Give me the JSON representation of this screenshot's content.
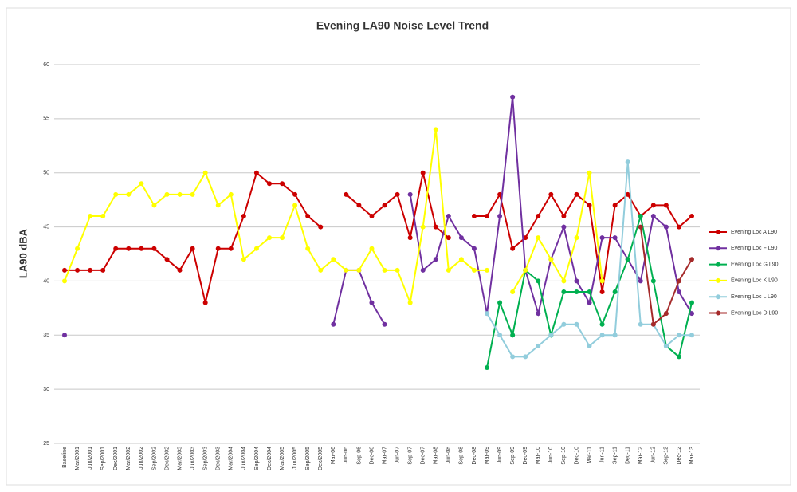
{
  "chart_data": {
    "type": "line",
    "title": "Evening LA90 Noise Level Trend",
    "y_label": "LA90 dBA",
    "categories": [
      "Baseline",
      "Mar/2001",
      "Jun/2001",
      "Sep/2001",
      "Dec/2001",
      "Mar/2002",
      "Jun/2002",
      "Sep/2002",
      "Dec/2002",
      "Mar/2003",
      "Jun/2003",
      "Sep/2003",
      "Dec/2003",
      "Mar/2004",
      "Jun/2004",
      "Sep/2004",
      "Dec/2004",
      "Mar/2005",
      "Jun/2005",
      "Sep/2005",
      "Dec/2005",
      "Mar-06",
      "Jun-06",
      "Sep-06",
      "Dec-06",
      "Mar-07",
      "Jun-07",
      "Sep-07",
      "Dec-07",
      "Mar-08",
      "Jun-08",
      "Sep-08",
      "Dec-08",
      "Mar-09",
      "Jun-09",
      "Sep-09",
      "Dec-09",
      "Mar-10",
      "Jun-10",
      "Sep-10",
      "Dec-10",
      "Mar-11",
      "Jun-11",
      "Sep-11",
      "Dec-11",
      "Mar-12",
      "Jun-12",
      "Sep-12",
      "Dec-12",
      "Mar-13"
    ],
    "series": [
      {
        "name": "Evening Loc A L90",
        "color": "#cc0000",
        "values": [
          41,
          41,
          41,
          41,
          43,
          43,
          43,
          43,
          42,
          41,
          43,
          38,
          43,
          43,
          46,
          50,
          49,
          49,
          48,
          46,
          45,
          null,
          48,
          47,
          46,
          47,
          48,
          44,
          50,
          45,
          44,
          null,
          46,
          46,
          48,
          43,
          44,
          46,
          48,
          46,
          48,
          47,
          39,
          47,
          48,
          46,
          47,
          47,
          45,
          46
        ]
      },
      {
        "name": "Evening Loc F L90",
        "color": "#7030a0",
        "values": [
          35,
          null,
          null,
          null,
          null,
          null,
          null,
          null,
          null,
          null,
          null,
          null,
          null,
          null,
          null,
          null,
          null,
          null,
          null,
          null,
          null,
          36,
          41,
          41,
          38,
          36,
          null,
          48,
          41,
          42,
          46,
          44,
          43,
          37,
          46,
          57,
          41,
          37,
          42,
          45,
          40,
          38,
          44,
          44,
          42,
          40,
          46,
          45,
          39,
          37
        ]
      },
      {
        "name": "Evening Loc G L90",
        "color": "#00b050",
        "values": [
          null,
          null,
          null,
          null,
          null,
          null,
          null,
          null,
          null,
          null,
          null,
          null,
          null,
          null,
          null,
          null,
          null,
          null,
          null,
          null,
          null,
          null,
          null,
          null,
          null,
          null,
          null,
          null,
          null,
          null,
          null,
          null,
          null,
          32,
          38,
          35,
          41,
          40,
          35,
          39,
          39,
          39,
          36,
          39,
          42,
          46,
          40,
          34,
          33,
          38
        ]
      },
      {
        "name": "Evening Loc K L90",
        "color": "#ffff00",
        "values": [
          40,
          43,
          46,
          46,
          48,
          48,
          49,
          47,
          48,
          48,
          48,
          50,
          47,
          48,
          42,
          43,
          44,
          44,
          47,
          43,
          41,
          42,
          41,
          41,
          43,
          41,
          41,
          38,
          45,
          54,
          41,
          42,
          41,
          41,
          null,
          39,
          41,
          44,
          42,
          40,
          44,
          50,
          40,
          null,
          null,
          null,
          null,
          null,
          null,
          null
        ]
      },
      {
        "name": "Evening Loc L L90",
        "color": "#92cddc",
        "values": [
          null,
          null,
          null,
          null,
          null,
          null,
          null,
          null,
          null,
          null,
          null,
          null,
          null,
          null,
          null,
          null,
          null,
          null,
          null,
          null,
          null,
          null,
          null,
          null,
          null,
          null,
          null,
          null,
          null,
          null,
          null,
          null,
          null,
          37,
          35,
          33,
          33,
          34,
          35,
          36,
          36,
          34,
          35,
          35,
          51,
          36,
          36,
          34,
          35,
          35
        ]
      },
      {
        "name": "Evening Loc D L90",
        "color": "#a52a2a",
        "values": [
          null,
          null,
          null,
          null,
          null,
          null,
          null,
          null,
          null,
          null,
          null,
          null,
          null,
          null,
          null,
          null,
          null,
          null,
          null,
          null,
          null,
          null,
          null,
          null,
          null,
          null,
          null,
          null,
          null,
          null,
          null,
          null,
          null,
          null,
          null,
          null,
          null,
          null,
          null,
          null,
          null,
          null,
          null,
          null,
          null,
          45,
          36,
          37,
          40,
          42
        ]
      }
    ],
    "ylim": [
      25,
      60
    ],
    "yticks": [
      25,
      30,
      35,
      40,
      45,
      50,
      55,
      60
    ],
    "grid": true,
    "legend": "right"
  }
}
